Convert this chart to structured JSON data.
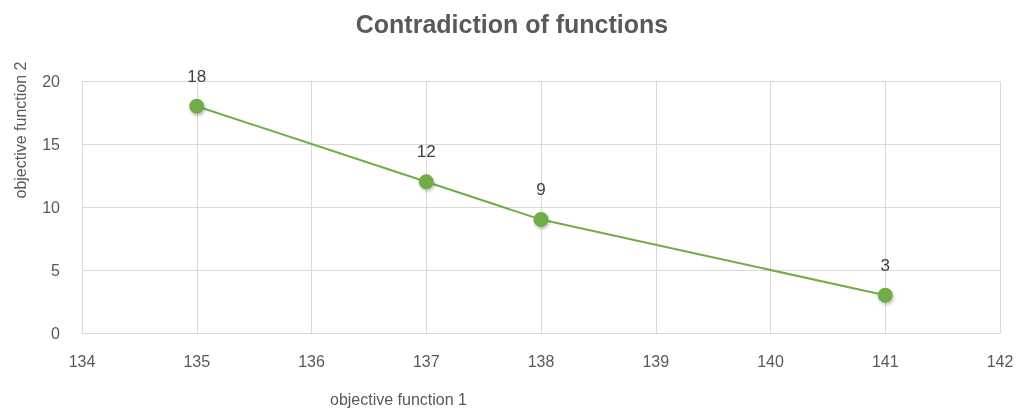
{
  "chart_data": {
    "type": "line",
    "title": "Contradiction of functions",
    "xlabel": "objective function 1",
    "ylabel": "objective function 2",
    "x": [
      135,
      137,
      138,
      141
    ],
    "values": [
      18,
      12,
      9,
      3
    ],
    "color": "#70ad47",
    "xlim": [
      134,
      142
    ],
    "xticks": [
      134,
      135,
      136,
      137,
      138,
      139,
      140,
      141,
      142
    ],
    "ylim": [
      0,
      20
    ],
    "yticks": [
      0,
      5,
      10,
      15,
      20
    ],
    "grid": true,
    "marker": "circle",
    "line_style": "solid",
    "data_labels": true
  }
}
